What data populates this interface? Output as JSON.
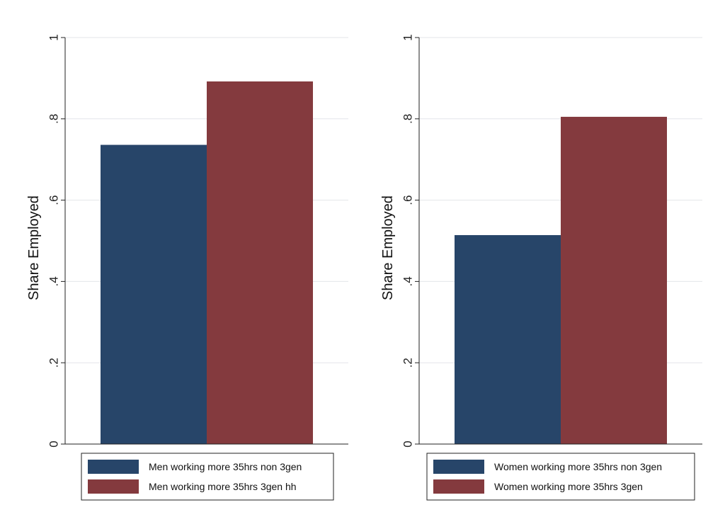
{
  "chart_data": [
    {
      "type": "bar",
      "ylabel": "Share Employed",
      "ylim": [
        0,
        1
      ],
      "yticks": [
        0,
        0.2,
        0.4,
        0.6,
        0.8,
        1
      ],
      "ytick_labels": [
        "0",
        ".2",
        ".4",
        ".6",
        ".8",
        "1"
      ],
      "grid": true,
      "legend_position": "bottom",
      "series": [
        {
          "name": "Men working more 35hrs non 3gen",
          "values": [
            0.736
          ],
          "color": "#274569"
        },
        {
          "name": "Men working more 35hrs 3gen hh",
          "values": [
            0.892
          ],
          "color": "#843a3e"
        }
      ]
    },
    {
      "type": "bar",
      "ylabel": "Share Employed",
      "ylim": [
        0,
        1
      ],
      "yticks": [
        0,
        0.2,
        0.4,
        0.6,
        0.8,
        1
      ],
      "ytick_labels": [
        "0",
        ".2",
        ".4",
        ".6",
        ".8",
        "1"
      ],
      "grid": true,
      "legend_position": "bottom",
      "series": [
        {
          "name": "Women working more 35hrs non 3gen",
          "values": [
            0.514
          ],
          "color": "#274569"
        },
        {
          "name": "Women working more 35hrs 3gen",
          "values": [
            0.805
          ],
          "color": "#843a3e"
        }
      ]
    }
  ]
}
